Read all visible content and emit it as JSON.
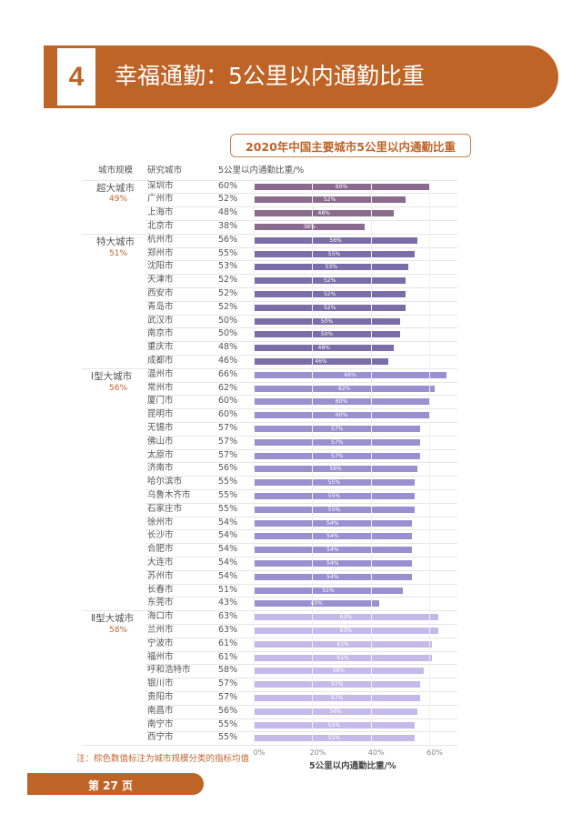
{
  "header": {
    "section_number": "4",
    "title": "幸福通勤：5公里以内通勤比重"
  },
  "chart_data": {
    "type": "bar",
    "title": "2020年中国主要城市5公里以内通勤比重",
    "column_headers": [
      "城市规模",
      "研究城市",
      "5公里以内通勤比重/%"
    ],
    "xlabel": "5公里以内通勤比重/%",
    "xlim": [
      0,
      70
    ],
    "x_ticks": [
      "0%",
      "20%",
      "40%",
      "60%"
    ],
    "x_tick_values": [
      0,
      20,
      40,
      60
    ],
    "groups": [
      {
        "name": "超大城市",
        "avg": "49%",
        "color": "#8a6b8e",
        "cities": [
          "深圳市",
          "广州市",
          "上海市",
          "北京市"
        ],
        "values": [
          60,
          52,
          48,
          38
        ]
      },
      {
        "name": "特大城市",
        "avg": "51%",
        "color": "#7a6ea8",
        "cities": [
          "杭州市",
          "郑州市",
          "沈阳市",
          "天津市",
          "西安市",
          "青岛市",
          "武汉市",
          "南京市",
          "重庆市",
          "成都市"
        ],
        "values": [
          56,
          55,
          53,
          52,
          52,
          52,
          50,
          50,
          48,
          46
        ]
      },
      {
        "name": "Ⅰ型大城市",
        "avg": "56%",
        "color": "#9b90cf",
        "cities": [
          "温州市",
          "常州市",
          "厦门市",
          "昆明市",
          "无锡市",
          "佛山市",
          "太原市",
          "济南市",
          "哈尔滨市",
          "乌鲁木齐市",
          "石家庄市",
          "徐州市",
          "长沙市",
          "合肥市",
          "大连市",
          "苏州市",
          "长春市",
          "东莞市"
        ],
        "values": [
          66,
          62,
          60,
          60,
          57,
          57,
          57,
          56,
          55,
          55,
          55,
          54,
          54,
          54,
          54,
          54,
          51,
          43
        ]
      },
      {
        "name": "Ⅱ型大城市",
        "avg": "58%",
        "color": "#c4baea",
        "cities": [
          "海口市",
          "兰州市",
          "宁波市",
          "福州市",
          "呼和浩特市",
          "银川市",
          "贵阳市",
          "南昌市",
          "南宁市",
          "西宁市"
        ],
        "values": [
          63,
          63,
          61,
          61,
          58,
          57,
          57,
          56,
          55,
          55
        ]
      }
    ],
    "note": "注：棕色数值标注为城市规模分类的指标均值"
  },
  "footer": {
    "page": "第 27 页"
  }
}
